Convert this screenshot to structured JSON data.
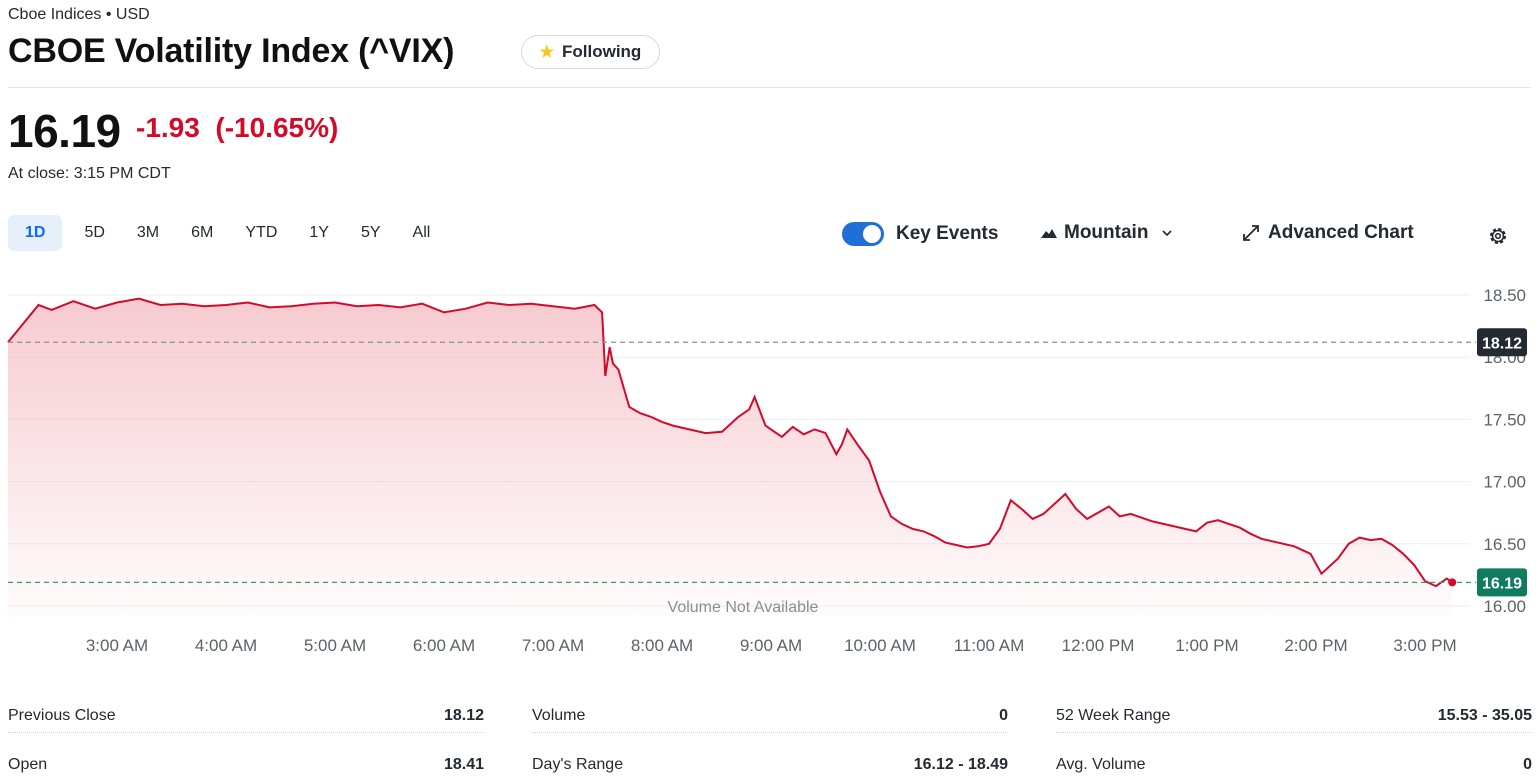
{
  "header": {
    "exchange": "Cboe Indices • USD",
    "title": "CBOE Volatility Index (^VIX)",
    "follow_label": "Following"
  },
  "quote": {
    "price": "16.19",
    "change": "-1.93  (-10.65%)",
    "close_time": "At close: 3:15 PM CDT"
  },
  "range_tabs": [
    "1D",
    "5D",
    "3M",
    "6M",
    "YTD",
    "1Y",
    "5Y",
    "All"
  ],
  "active_range": "1D",
  "controls": {
    "key_events": "Key Events",
    "chart_type": "Mountain",
    "advanced_chart": "Advanced Chart"
  },
  "colors": {
    "line": "#d40a2a",
    "fill": "#f6c9cf",
    "accent": "#0f69ff",
    "toggle": "#1f6fd6",
    "prev_close_tag": "#232a31",
    "last_tag": "#0f7b5f"
  },
  "chart_data": {
    "type": "area",
    "ylim": [
      15.9,
      18.6
    ],
    "yticks": [
      "18.50",
      "17.50",
      "17.00",
      "16.50",
      "16.00"
    ],
    "yticks_values": [
      18.5,
      17.5,
      17.0,
      16.5,
      16.0
    ],
    "hidden_tick": "18.00",
    "xticks": [
      "3:00 AM",
      "4:00 AM",
      "5:00 AM",
      "6:00 AM",
      "7:00 AM",
      "8:00 AM",
      "9:00 AM",
      "10:00 AM",
      "11:00 AM",
      "12:00 PM",
      "1:00 PM",
      "2:00 PM",
      "3:00 PM"
    ],
    "previous_close": 18.12,
    "previous_close_label": "18.12",
    "last": 16.19,
    "last_label": "16.19",
    "volume_note": "Volume Not Available",
    "x_hours": [
      2.0,
      2.28,
      2.4,
      2.6,
      2.8,
      3.0,
      3.2,
      3.4,
      3.6,
      3.8,
      4.0,
      4.2,
      4.4,
      4.6,
      4.8,
      5.0,
      5.2,
      5.4,
      5.6,
      5.8,
      6.0,
      6.2,
      6.4,
      6.6,
      6.8,
      7.0,
      7.2,
      7.38,
      7.45,
      7.48,
      7.52,
      7.55,
      7.6,
      7.7,
      7.8,
      7.9,
      8.0,
      8.1,
      8.2,
      8.3,
      8.4,
      8.55,
      8.7,
      8.8,
      8.85,
      8.95,
      9.0,
      9.1,
      9.2,
      9.3,
      9.4,
      9.5,
      9.6,
      9.65,
      9.7,
      9.8,
      9.9,
      10.0,
      10.1,
      10.2,
      10.3,
      10.4,
      10.5,
      10.6,
      10.7,
      10.8,
      10.9,
      11.0,
      11.1,
      11.2,
      11.3,
      11.4,
      11.5,
      11.6,
      11.7,
      11.8,
      11.9,
      12.0,
      12.1,
      12.2,
      12.3,
      12.4,
      12.5,
      12.6,
      12.7,
      12.8,
      12.9,
      13.0,
      13.1,
      13.2,
      13.3,
      13.4,
      13.5,
      13.6,
      13.7,
      13.8,
      13.95,
      14.05,
      14.2,
      14.3,
      14.4,
      14.5,
      14.6,
      14.7,
      14.8,
      14.9,
      15.0,
      15.1,
      15.2,
      15.25
    ],
    "values": [
      18.12,
      18.42,
      18.38,
      18.45,
      18.39,
      18.44,
      18.47,
      18.42,
      18.43,
      18.41,
      18.42,
      18.44,
      18.4,
      18.41,
      18.43,
      18.44,
      18.41,
      18.42,
      18.4,
      18.43,
      18.36,
      18.39,
      18.44,
      18.42,
      18.43,
      18.41,
      18.39,
      18.42,
      18.36,
      17.85,
      18.08,
      17.95,
      17.9,
      17.6,
      17.55,
      17.52,
      17.48,
      17.45,
      17.43,
      17.41,
      17.39,
      17.4,
      17.52,
      17.58,
      17.68,
      17.45,
      17.42,
      17.36,
      17.44,
      17.38,
      17.42,
      17.39,
      17.22,
      17.3,
      17.42,
      17.29,
      17.17,
      16.92,
      16.72,
      16.66,
      16.62,
      16.6,
      16.56,
      16.51,
      16.49,
      16.47,
      16.48,
      16.5,
      16.62,
      16.85,
      16.78,
      16.7,
      16.74,
      16.82,
      16.9,
      16.78,
      16.7,
      16.75,
      16.8,
      16.72,
      16.74,
      16.71,
      16.68,
      16.66,
      16.64,
      16.62,
      16.6,
      16.67,
      16.69,
      16.66,
      16.63,
      16.58,
      16.54,
      16.52,
      16.5,
      16.48,
      16.42,
      16.26,
      16.38,
      16.5,
      16.55,
      16.53,
      16.54,
      16.49,
      16.42,
      16.33,
      16.2,
      16.16,
      16.22,
      16.19
    ]
  },
  "stats": [
    {
      "label": "Previous Close",
      "value": "18.12"
    },
    {
      "label": "Open",
      "value": "18.41"
    },
    {
      "label": "Volume",
      "value": "0"
    },
    {
      "label": "Day's Range",
      "value": "16.12 - 18.49"
    },
    {
      "label": "52 Week Range",
      "value": "15.53 - 35.05"
    },
    {
      "label": "Avg. Volume",
      "value": "0"
    }
  ]
}
